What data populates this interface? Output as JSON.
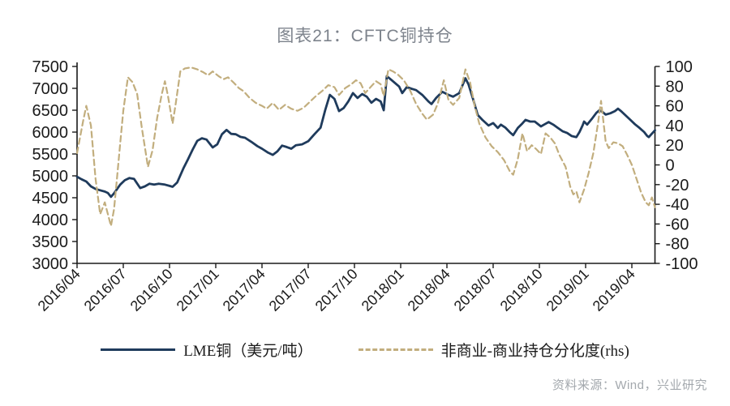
{
  "title": "图表21：CFTC铜持仓",
  "source": "资料来源：Wind，兴业研究",
  "legend": {
    "items": [
      {
        "label": "LME铜（美元/吨）",
        "style": "solid",
        "color": "#1f3b5c"
      },
      {
        "label": "非商业-商业持仓分化度(rhs)",
        "style": "dashed",
        "color": "#c2ae7e"
      }
    ]
  },
  "chart_data": {
    "type": "line",
    "title": "图表21：CFTC铜持仓",
    "x_unit": "months since 2016/04",
    "x_tick_labels": [
      "2016/04",
      "2016/07",
      "2016/10",
      "2017/01",
      "2017/04",
      "2017/07",
      "2017/10",
      "2018/01",
      "2018/04",
      "2018/07",
      "2018/10",
      "2019/01",
      "2019/04"
    ],
    "x_tick_positions": [
      0,
      3,
      6,
      9,
      12,
      15,
      18,
      21,
      24,
      27,
      30,
      33,
      36
    ],
    "x_range": [
      0,
      37.5
    ],
    "left_axis": {
      "min": 3000,
      "max": 7500,
      "ticks": [
        3000,
        3500,
        4000,
        4500,
        5000,
        5500,
        6000,
        6500,
        7000,
        7500
      ]
    },
    "right_axis": {
      "min": -100,
      "max": 100,
      "ticks": [
        -100,
        -80,
        -60,
        -40,
        -20,
        0,
        20,
        40,
        60,
        80,
        100
      ]
    },
    "grid": false,
    "legend_position": "bottom",
    "series": [
      {
        "name": "LME铜（美元/吨）",
        "axis": "left",
        "color": "#1f3b5c",
        "style": "solid",
        "points": [
          [
            0,
            4980
          ],
          [
            0.3,
            4920
          ],
          [
            0.6,
            4870
          ],
          [
            0.9,
            4760
          ],
          [
            1.2,
            4700
          ],
          [
            1.5,
            4670
          ],
          [
            1.8,
            4640
          ],
          [
            2.0,
            4610
          ],
          [
            2.2,
            4520
          ],
          [
            2.4,
            4600
          ],
          [
            2.6,
            4700
          ],
          [
            2.8,
            4800
          ],
          [
            3.1,
            4900
          ],
          [
            3.4,
            4950
          ],
          [
            3.7,
            4930
          ],
          [
            4.1,
            4720
          ],
          [
            4.4,
            4760
          ],
          [
            4.7,
            4820
          ],
          [
            5.0,
            4800
          ],
          [
            5.3,
            4820
          ],
          [
            5.7,
            4800
          ],
          [
            6.0,
            4770
          ],
          [
            6.2,
            4750
          ],
          [
            6.5,
            4850
          ],
          [
            6.9,
            5170
          ],
          [
            7.2,
            5380
          ],
          [
            7.5,
            5600
          ],
          [
            7.8,
            5800
          ],
          [
            8.1,
            5860
          ],
          [
            8.4,
            5830
          ],
          [
            8.8,
            5650
          ],
          [
            9.1,
            5720
          ],
          [
            9.4,
            5950
          ],
          [
            9.7,
            6050
          ],
          [
            10.0,
            5960
          ],
          [
            10.3,
            5950
          ],
          [
            10.6,
            5890
          ],
          [
            10.9,
            5870
          ],
          [
            11.3,
            5780
          ],
          [
            11.7,
            5680
          ],
          [
            12.0,
            5620
          ],
          [
            12.4,
            5530
          ],
          [
            12.7,
            5480
          ],
          [
            13.0,
            5560
          ],
          [
            13.3,
            5690
          ],
          [
            13.6,
            5660
          ],
          [
            13.9,
            5620
          ],
          [
            14.2,
            5700
          ],
          [
            14.6,
            5720
          ],
          [
            15.0,
            5790
          ],
          [
            15.4,
            5950
          ],
          [
            15.8,
            6100
          ],
          [
            16.1,
            6500
          ],
          [
            16.4,
            6850
          ],
          [
            16.7,
            6760
          ],
          [
            17.0,
            6480
          ],
          [
            17.3,
            6550
          ],
          [
            17.6,
            6700
          ],
          [
            17.9,
            6890
          ],
          [
            18.2,
            6780
          ],
          [
            18.5,
            6870
          ],
          [
            18.8,
            6810
          ],
          [
            19.1,
            6670
          ],
          [
            19.4,
            6760
          ],
          [
            19.7,
            6700
          ],
          [
            19.9,
            6500
          ],
          [
            20.1,
            7280
          ],
          [
            20.4,
            7190
          ],
          [
            20.7,
            7100
          ],
          [
            20.9,
            7040
          ],
          [
            21.1,
            6890
          ],
          [
            21.4,
            7030
          ],
          [
            21.7,
            6990
          ],
          [
            22.0,
            6960
          ],
          [
            22.4,
            6850
          ],
          [
            22.8,
            6700
          ],
          [
            23.0,
            6640
          ],
          [
            23.3,
            6780
          ],
          [
            23.7,
            6920
          ],
          [
            24.1,
            6850
          ],
          [
            24.4,
            6810
          ],
          [
            24.6,
            6850
          ],
          [
            24.8,
            6890
          ],
          [
            25.2,
            7230
          ],
          [
            25.4,
            7090
          ],
          [
            25.7,
            6750
          ],
          [
            26.0,
            6390
          ],
          [
            26.3,
            6280
          ],
          [
            26.7,
            6150
          ],
          [
            27.0,
            6205
          ],
          [
            27.3,
            6094
          ],
          [
            27.5,
            6170
          ],
          [
            27.8,
            6100
          ],
          [
            28.1,
            5990
          ],
          [
            28.3,
            5930
          ],
          [
            28.6,
            6094
          ],
          [
            28.9,
            6200
          ],
          [
            29.1,
            6280
          ],
          [
            29.4,
            6240
          ],
          [
            29.7,
            6240
          ],
          [
            30.1,
            6130
          ],
          [
            30.3,
            6170
          ],
          [
            30.6,
            6230
          ],
          [
            30.9,
            6170
          ],
          [
            31.2,
            6094
          ],
          [
            31.5,
            6020
          ],
          [
            31.8,
            5980
          ],
          [
            32.1,
            5910
          ],
          [
            32.4,
            5885
          ],
          [
            32.6,
            6000
          ],
          [
            32.8,
            6150
          ],
          [
            32.9,
            6240
          ],
          [
            33.1,
            6170
          ],
          [
            33.4,
            6300
          ],
          [
            33.7,
            6440
          ],
          [
            33.9,
            6500
          ],
          [
            34.1,
            6460
          ],
          [
            34.3,
            6400
          ],
          [
            34.6,
            6430
          ],
          [
            34.9,
            6480
          ],
          [
            35.1,
            6535
          ],
          [
            35.3,
            6480
          ],
          [
            35.6,
            6380
          ],
          [
            35.9,
            6280
          ],
          [
            36.2,
            6180
          ],
          [
            36.5,
            6094
          ],
          [
            36.8,
            6000
          ],
          [
            37.0,
            5910
          ],
          [
            37.1,
            5885
          ],
          [
            37.3,
            5965
          ],
          [
            37.5,
            6040
          ]
        ]
      },
      {
        "name": "非商业-商业持仓分化度(rhs)",
        "axis": "right",
        "color": "#c2ae7e",
        "style": "dashed",
        "points": [
          [
            0,
            12
          ],
          [
            0.4,
            45
          ],
          [
            0.6,
            60
          ],
          [
            0.9,
            40
          ],
          [
            1.2,
            -14
          ],
          [
            1.5,
            -50
          ],
          [
            1.8,
            -38
          ],
          [
            2.2,
            -62
          ],
          [
            2.4,
            -45
          ],
          [
            2.6,
            -12
          ],
          [
            2.8,
            22
          ],
          [
            3.0,
            55
          ],
          [
            3.3,
            89
          ],
          [
            3.6,
            84
          ],
          [
            3.9,
            72
          ],
          [
            4.2,
            38
          ],
          [
            4.6,
            -2
          ],
          [
            4.9,
            15
          ],
          [
            5.2,
            48
          ],
          [
            5.5,
            72
          ],
          [
            5.7,
            85
          ],
          [
            5.9,
            70
          ],
          [
            6.2,
            42
          ],
          [
            6.4,
            62
          ],
          [
            6.7,
            95
          ],
          [
            7.0,
            98
          ],
          [
            7.4,
            99
          ],
          [
            7.8,
            97
          ],
          [
            8.2,
            94
          ],
          [
            8.5,
            91
          ],
          [
            8.8,
            95
          ],
          [
            9.2,
            90
          ],
          [
            9.5,
            87
          ],
          [
            9.8,
            89
          ],
          [
            10.2,
            83
          ],
          [
            10.5,
            78
          ],
          [
            10.8,
            75
          ],
          [
            11.2,
            68
          ],
          [
            11.6,
            63
          ],
          [
            12.0,
            60
          ],
          [
            12.3,
            57
          ],
          [
            12.7,
            63
          ],
          [
            13.1,
            56
          ],
          [
            13.5,
            61
          ],
          [
            13.9,
            57
          ],
          [
            14.3,
            55
          ],
          [
            14.7,
            58
          ],
          [
            15.1,
            64
          ],
          [
            15.5,
            70
          ],
          [
            15.9,
            75
          ],
          [
            16.3,
            81
          ],
          [
            16.7,
            79
          ],
          [
            17.0,
            71
          ],
          [
            17.4,
            78
          ],
          [
            17.8,
            82
          ],
          [
            18.1,
            86
          ],
          [
            18.4,
            83
          ],
          [
            18.7,
            73
          ],
          [
            19.1,
            80
          ],
          [
            19.4,
            85
          ],
          [
            19.7,
            82
          ],
          [
            19.9,
            70
          ],
          [
            20.2,
            97
          ],
          [
            20.5,
            95
          ],
          [
            20.8,
            92
          ],
          [
            21.2,
            86
          ],
          [
            21.6,
            76
          ],
          [
            22.0,
            62
          ],
          [
            22.4,
            52
          ],
          [
            22.7,
            46
          ],
          [
            23.1,
            51
          ],
          [
            23.4,
            62
          ],
          [
            23.8,
            86
          ],
          [
            24.1,
            66
          ],
          [
            24.4,
            61
          ],
          [
            24.8,
            68
          ],
          [
            25.2,
            97
          ],
          [
            25.5,
            84
          ],
          [
            25.8,
            60
          ],
          [
            26.1,
            42
          ],
          [
            26.5,
            28
          ],
          [
            26.9,
            19
          ],
          [
            27.3,
            13
          ],
          [
            27.7,
            5
          ],
          [
            28.1,
            -7
          ],
          [
            28.3,
            -10
          ],
          [
            28.6,
            6
          ],
          [
            28.9,
            32
          ],
          [
            29.2,
            14
          ],
          [
            29.5,
            20
          ],
          [
            29.8,
            16
          ],
          [
            30.1,
            11
          ],
          [
            30.4,
            32
          ],
          [
            30.7,
            28
          ],
          [
            31.0,
            22
          ],
          [
            31.3,
            10
          ],
          [
            31.7,
            -2
          ],
          [
            32.0,
            -22
          ],
          [
            32.2,
            -30
          ],
          [
            32.4,
            -27
          ],
          [
            32.6,
            -38
          ],
          [
            32.9,
            -25
          ],
          [
            33.2,
            -8
          ],
          [
            33.5,
            12
          ],
          [
            33.8,
            42
          ],
          [
            34.0,
            65
          ],
          [
            34.3,
            24
          ],
          [
            34.5,
            17
          ],
          [
            34.8,
            23
          ],
          [
            35.1,
            22
          ],
          [
            35.4,
            19
          ],
          [
            35.7,
            10
          ],
          [
            36.0,
            0
          ],
          [
            36.3,
            -14
          ],
          [
            36.6,
            -28
          ],
          [
            36.9,
            -38
          ],
          [
            37.1,
            -41
          ],
          [
            37.3,
            -33
          ],
          [
            37.5,
            -43
          ]
        ]
      }
    ]
  }
}
